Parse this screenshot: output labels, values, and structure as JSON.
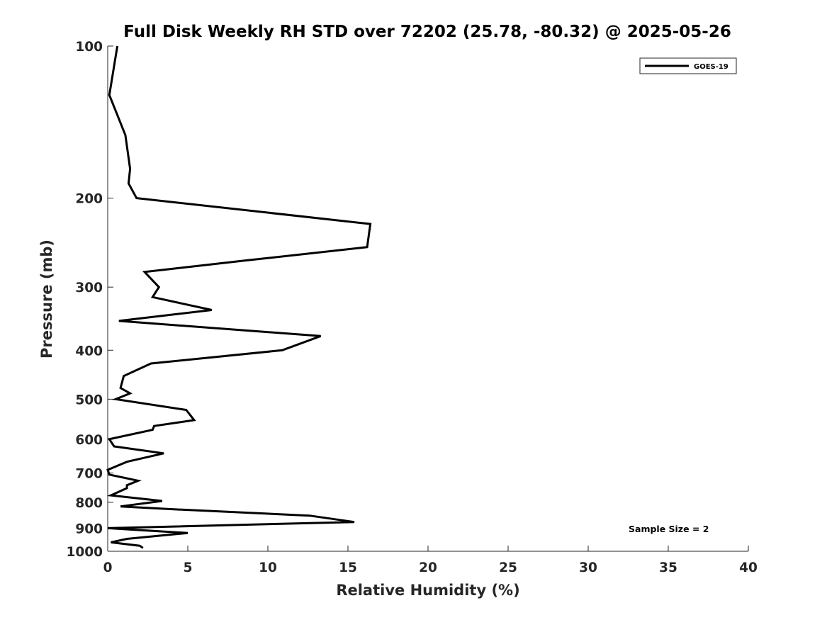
{
  "chart_data": {
    "type": "line",
    "title": "Full Disk Weekly RH STD over 72202 (25.78, -80.32) @ 2025-05-26",
    "xlabel": "Relative Humidity (%)",
    "ylabel": "Pressure (mb)",
    "xlim": [
      0,
      40
    ],
    "ylim": [
      1000,
      100
    ],
    "yscale": "log",
    "y_reversed": true,
    "grid": false,
    "legend_position": "top-right",
    "x_ticks": [
      "0",
      "5",
      "10",
      "15",
      "20",
      "25",
      "30",
      "35",
      "40"
    ],
    "y_ticks": [
      "100",
      "200",
      "300",
      "400",
      "500",
      "600",
      "700",
      "800",
      "900",
      "1000"
    ],
    "annotation": "Sample Size = 2",
    "series": [
      {
        "name": "GOES-19",
        "color": "#000000",
        "points": [
          [
            0.6,
            100
          ],
          [
            0.1,
            125
          ],
          [
            1.1,
            150
          ],
          [
            1.4,
            175
          ],
          [
            1.3,
            187
          ],
          [
            1.8,
            200
          ],
          [
            16.4,
            225
          ],
          [
            16.2,
            250
          ],
          [
            8.5,
            266
          ],
          [
            2.3,
            280
          ],
          [
            3.2,
            300
          ],
          [
            2.8,
            314
          ],
          [
            6.5,
            333
          ],
          [
            0.7,
            350
          ],
          [
            13.3,
            375
          ],
          [
            10.9,
            400
          ],
          [
            2.7,
            425
          ],
          [
            1.0,
            450
          ],
          [
            0.8,
            475
          ],
          [
            1.4,
            487
          ],
          [
            0.5,
            500
          ],
          [
            4.9,
            525
          ],
          [
            5.4,
            550
          ],
          [
            2.9,
            565
          ],
          [
            2.8,
            575
          ],
          [
            0.1,
            600
          ],
          [
            0.4,
            620
          ],
          [
            3.5,
            640
          ],
          [
            1.2,
            665
          ],
          [
            0.0,
            690
          ],
          [
            0.1,
            705
          ],
          [
            1.9,
            725
          ],
          [
            1.2,
            740
          ],
          [
            1.2,
            750
          ],
          [
            0.2,
            775
          ],
          [
            3.4,
            795
          ],
          [
            0.8,
            815
          ],
          [
            3.8,
            825
          ],
          [
            12.6,
            850
          ],
          [
            15.4,
            875
          ],
          [
            0.0,
            900
          ],
          [
            5.0,
            920
          ],
          [
            1.2,
            945
          ],
          [
            0.2,
            960
          ],
          [
            2.0,
            975
          ],
          [
            2.2,
            985
          ]
        ]
      }
    ]
  }
}
